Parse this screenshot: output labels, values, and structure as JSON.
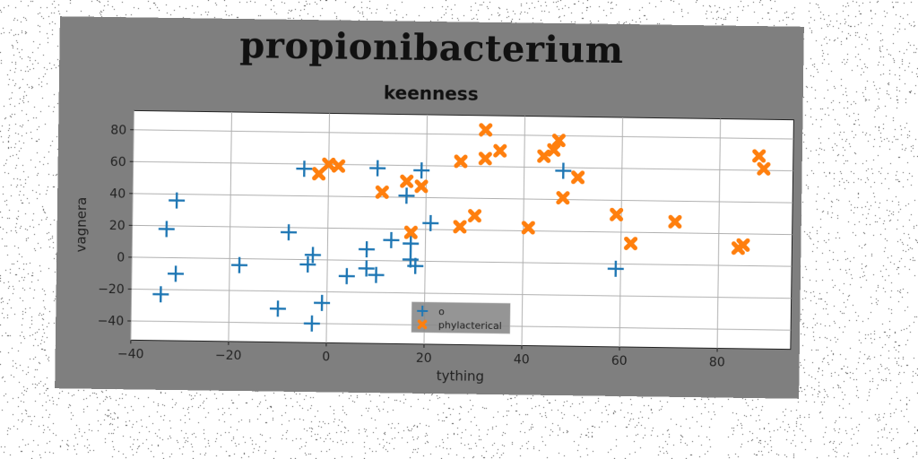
{
  "chart_data": {
    "type": "scatter",
    "suptitle": "propionibacterium",
    "title": "keenness",
    "xlabel": "tything",
    "ylabel": "vagnera",
    "xlim": [
      -40,
      95
    ],
    "ylim": [
      -52,
      92
    ],
    "xticks": [
      -40,
      -20,
      0,
      20,
      40,
      60,
      80
    ],
    "yticks": [
      -40,
      -20,
      0,
      20,
      40,
      60,
      80
    ],
    "grid": true,
    "legend_position": "lower-center",
    "series": [
      {
        "name": "o",
        "marker": "plus",
        "color": "#1f77b4",
        "points": [
          [
            -5,
            57
          ],
          [
            10,
            58
          ],
          [
            19,
            57
          ],
          [
            48,
            58
          ],
          [
            -31,
            36
          ],
          [
            16,
            41
          ],
          [
            -33,
            18
          ],
          [
            -8,
            17
          ],
          [
            21,
            24
          ],
          [
            13,
            13
          ],
          [
            17,
            11
          ],
          [
            8,
            7
          ],
          [
            -3,
            3
          ],
          [
            17,
            1
          ],
          [
            18,
            -3
          ],
          [
            -4,
            -3
          ],
          [
            -18,
            -4
          ],
          [
            8,
            -5
          ],
          [
            59,
            -3
          ],
          [
            -31,
            -10
          ],
          [
            4,
            -10
          ],
          [
            10,
            -9
          ],
          [
            -34,
            -23
          ],
          [
            -1,
            -27
          ],
          [
            -10,
            -31
          ],
          [
            -3,
            -40
          ]
        ]
      },
      {
        "name": "phylacterical",
        "marker": "x",
        "color": "#ff7f0e",
        "points": [
          [
            32,
            83
          ],
          [
            47,
            77
          ],
          [
            35,
            70
          ],
          [
            46,
            71
          ],
          [
            44,
            67
          ],
          [
            32,
            65
          ],
          [
            27,
            63
          ],
          [
            88,
            69
          ],
          [
            89,
            61
          ],
          [
            0,
            60
          ],
          [
            2,
            59
          ],
          [
            -2,
            54
          ],
          [
            51,
            54
          ],
          [
            16,
            50
          ],
          [
            19,
            47
          ],
          [
            11,
            43
          ],
          [
            48,
            41
          ],
          [
            59,
            31
          ],
          [
            30,
            29
          ],
          [
            71,
            27
          ],
          [
            27,
            22
          ],
          [
            41,
            22
          ],
          [
            17,
            18
          ],
          [
            62,
            13
          ],
          [
            85,
            13
          ],
          [
            84,
            11
          ]
        ]
      }
    ]
  }
}
